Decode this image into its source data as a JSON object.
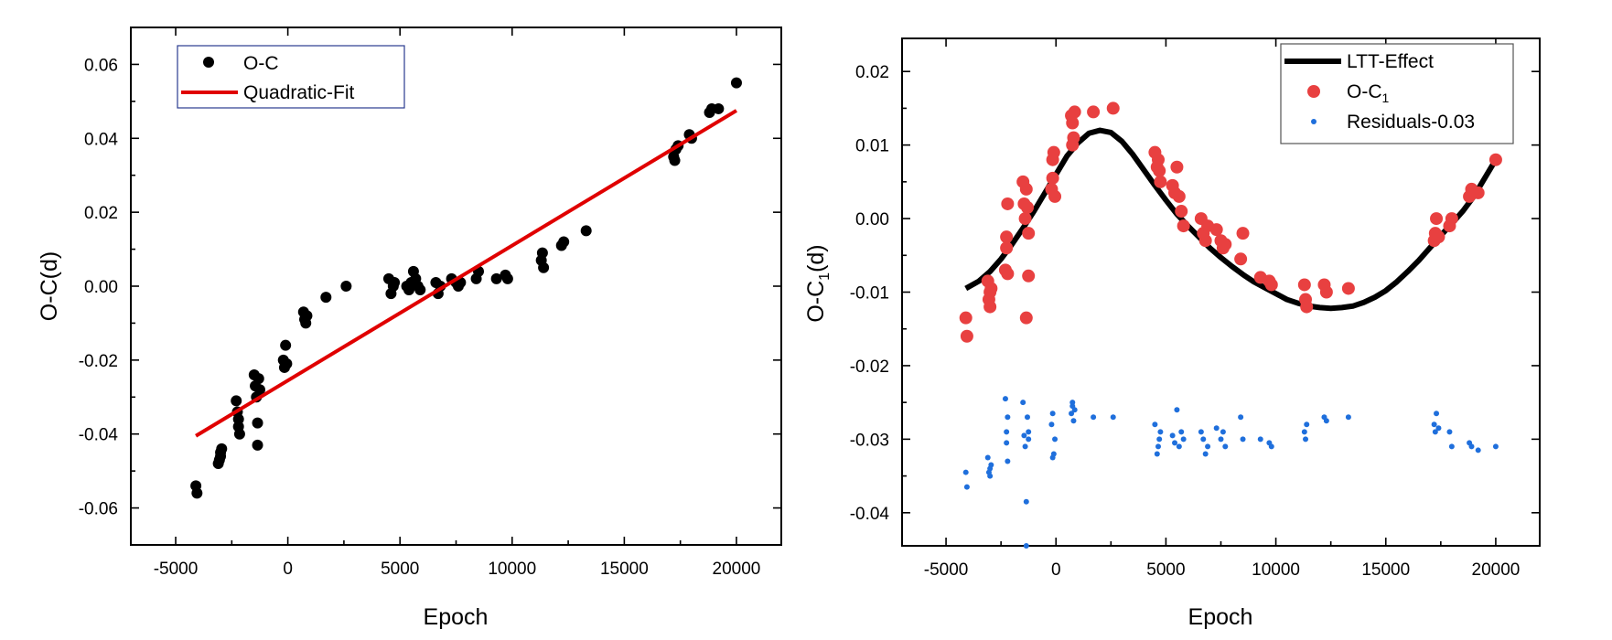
{
  "chart_data": [
    {
      "type": "scatter",
      "id": "left",
      "xlabel": "Epoch",
      "ylabel": "O-C(d)",
      "xlim": [
        -7000,
        22000
      ],
      "ylim": [
        -0.07,
        0.07
      ],
      "xticks": [
        -5000,
        0,
        5000,
        10000,
        15000,
        20000
      ],
      "xtick_labels": [
        "-5000",
        "0",
        "5000",
        "10000",
        "15000",
        "20000"
      ],
      "yticks": [
        -0.06,
        -0.04,
        -0.02,
        0.0,
        0.02,
        0.04,
        0.06
      ],
      "ytick_labels": [
        "-0.06",
        "-0.04",
        "-0.02",
        "0.00",
        "0.02",
        "0.04",
        "0.06"
      ],
      "legend": {
        "placement": "top-left",
        "entries": [
          {
            "label": "O-C",
            "style": "marker",
            "color": "#000000"
          },
          {
            "label": "Quadratic-Fit",
            "style": "line",
            "color": "#e00000"
          }
        ]
      },
      "series": [
        {
          "name": "O-C",
          "kind": "points",
          "color": "#000000",
          "x": [
            -4100,
            -4050,
            -3100,
            -3050,
            -3000,
            -3000,
            -2950,
            -2300,
            -2250,
            -2200,
            -2200,
            -2150,
            -1500,
            -1450,
            -1400,
            -1350,
            -1350,
            -1300,
            -1250,
            -200,
            -150,
            -100,
            -50,
            700,
            750,
            800,
            850,
            1700,
            2600,
            4500,
            4600,
            4700,
            4750,
            5300,
            5400,
            5500,
            5600,
            5700,
            5800,
            5900,
            6600,
            6700,
            6800,
            7300,
            7500,
            7600,
            7700,
            8400,
            8500,
            9300,
            9700,
            9800,
            11300,
            11350,
            11400,
            12200,
            12300,
            13300,
            17200,
            17250,
            17300,
            17400,
            17900,
            18000,
            18800,
            18900,
            19200,
            20000
          ],
          "y": [
            -0.054,
            -0.056,
            -0.048,
            -0.047,
            -0.045,
            -0.046,
            -0.044,
            -0.031,
            -0.034,
            -0.036,
            -0.038,
            -0.04,
            -0.024,
            -0.027,
            -0.03,
            -0.037,
            -0.043,
            -0.025,
            -0.028,
            -0.02,
            -0.022,
            -0.016,
            -0.021,
            -0.007,
            -0.009,
            -0.01,
            -0.008,
            -0.003,
            0.0,
            0.002,
            -0.002,
            0.0,
            0.001,
            0.0,
            -0.001,
            0.001,
            0.004,
            0.002,
            0.0,
            -0.001,
            0.001,
            -0.002,
            0.0,
            0.002,
            0.001,
            0.0,
            0.001,
            0.002,
            0.004,
            0.002,
            0.003,
            0.002,
            0.007,
            0.009,
            0.005,
            0.011,
            0.012,
            0.015,
            0.035,
            0.034,
            0.037,
            0.038,
            0.041,
            0.04,
            0.047,
            0.048,
            0.048,
            0.055
          ]
        },
        {
          "name": "Quadratic-Fit",
          "kind": "line",
          "color": "#e00000",
          "x": [
            -4100,
            20000
          ],
          "y": [
            -0.0405,
            0.0475
          ]
        }
      ]
    },
    {
      "type": "scatter",
      "id": "right",
      "xlabel": "Epoch",
      "ylabel_main": "O-C",
      "ylabel_sub": "1",
      "ylabel_tail": "(d)",
      "xlim": [
        -7000,
        22000
      ],
      "ylim": [
        -0.0445,
        0.0245
      ],
      "xticks": [
        -5000,
        0,
        5000,
        10000,
        15000,
        20000
      ],
      "xtick_labels": [
        "-5000",
        "0",
        "5000",
        "10000",
        "15000",
        "20000"
      ],
      "yticks": [
        -0.04,
        -0.03,
        -0.02,
        -0.01,
        0.0,
        0.01,
        0.02
      ],
      "ytick_labels": [
        "-0.04",
        "-0.03",
        "-0.02",
        "-0.01",
        "0.00",
        "0.01",
        "0.02"
      ],
      "legend": {
        "placement": "top-right",
        "entries": [
          {
            "label": "LTT-Effect",
            "style": "line",
            "color": "#000000"
          },
          {
            "label_main": "O-C",
            "label_sub": "1",
            "style": "marker",
            "color": "#e84040"
          },
          {
            "label": "Residuals-0.03",
            "style": "small-marker",
            "color": "#1f6fdc"
          }
        ]
      },
      "series": [
        {
          "name": "LTT-Effect",
          "kind": "line",
          "color": "#000000",
          "x": [
            -4100,
            -3500,
            -3000,
            -2500,
            -2000,
            -1500,
            -1000,
            -500,
            0,
            500,
            1000,
            1500,
            2000,
            2500,
            3000,
            3500,
            4000,
            4500,
            5000,
            5500,
            6000,
            6500,
            7000,
            7500,
            8000,
            8500,
            9000,
            9500,
            10000,
            10500,
            11000,
            11500,
            12000,
            12500,
            13000,
            13500,
            14000,
            14500,
            15000,
            15500,
            16000,
            16500,
            17000,
            17500,
            18000,
            18500,
            19000,
            19500,
            20000
          ],
          "y": [
            -0.0095,
            -0.0085,
            -0.0072,
            -0.0055,
            -0.0035,
            -0.0013,
            0.001,
            0.0035,
            0.006,
            0.0085,
            0.0103,
            0.0116,
            0.012,
            0.0117,
            0.0105,
            0.0087,
            0.0066,
            0.0045,
            0.0025,
            0.0006,
            -0.001,
            -0.0025,
            -0.004,
            -0.0053,
            -0.0065,
            -0.0076,
            -0.0086,
            -0.0094,
            -0.0102,
            -0.011,
            -0.0115,
            -0.0119,
            -0.0121,
            -0.0122,
            -0.0121,
            -0.0119,
            -0.0114,
            -0.0107,
            -0.0098,
            -0.0086,
            -0.0072,
            -0.0057,
            -0.004,
            -0.0023,
            -0.0007,
            0.001,
            0.003,
            0.0055,
            0.008
          ]
        },
        {
          "name": "O-C1",
          "kind": "points",
          "color": "#e84040",
          "x": [
            -4100,
            -4050,
            -3100,
            -3050,
            -3000,
            -2950,
            -3000,
            -2300,
            -2250,
            -2200,
            -2250,
            -2200,
            -1500,
            -1450,
            -1400,
            -1350,
            -1300,
            -1250,
            -1350,
            -1250,
            -200,
            -150,
            -100,
            -50,
            -150,
            700,
            750,
            800,
            850,
            750,
            1700,
            2600,
            4500,
            4600,
            4700,
            4750,
            4650,
            5300,
            5400,
            5500,
            5700,
            5600,
            5800,
            6600,
            6700,
            6800,
            6900,
            7300,
            7500,
            7600,
            7700,
            8400,
            8500,
            9300,
            9700,
            9800,
            11300,
            11350,
            11400,
            12200,
            12300,
            13300,
            17200,
            17250,
            17300,
            17400,
            17900,
            18000,
            18800,
            18900,
            19200,
            20000
          ],
          "y": [
            -0.0135,
            -0.016,
            -0.0085,
            -0.011,
            -0.012,
            -0.0095,
            -0.01,
            -0.007,
            -0.004,
            0.002,
            -0.0025,
            -0.0075,
            0.005,
            0.002,
            0.0,
            0.004,
            0.0015,
            -0.002,
            -0.0135,
            -0.0078,
            0.004,
            0.008,
            0.009,
            0.003,
            0.0055,
            0.014,
            0.013,
            0.011,
            0.0145,
            0.01,
            0.0145,
            0.015,
            0.009,
            0.007,
            0.0065,
            0.005,
            0.008,
            0.0045,
            0.0035,
            0.007,
            0.001,
            0.003,
            -0.001,
            0.0,
            -0.002,
            -0.003,
            -0.001,
            -0.0015,
            -0.003,
            -0.004,
            -0.0035,
            -0.0055,
            -0.002,
            -0.008,
            -0.0085,
            -0.009,
            -0.009,
            -0.011,
            -0.012,
            -0.009,
            -0.01,
            -0.0095,
            -0.003,
            -0.002,
            0.0,
            -0.0025,
            -0.001,
            0.0,
            0.003,
            0.004,
            0.0035,
            0.008
          ]
        },
        {
          "name": "Residuals-0.03",
          "kind": "points",
          "color": "#1f6fdc",
          "x": [
            -4100,
            -4050,
            -3100,
            -3050,
            -3000,
            -2950,
            -3000,
            -2300,
            -2250,
            -2200,
            -2250,
            -2200,
            -1500,
            -1450,
            -1400,
            -1350,
            -1300,
            -1250,
            -1350,
            -1250,
            -200,
            -150,
            -100,
            -50,
            -150,
            700,
            750,
            800,
            850,
            750,
            1700,
            2600,
            4500,
            4600,
            4700,
            4750,
            4650,
            5300,
            5400,
            5500,
            5700,
            5600,
            5800,
            6600,
            6700,
            6800,
            6900,
            7300,
            7500,
            7600,
            7700,
            8400,
            8500,
            9300,
            9700,
            9800,
            11300,
            11350,
            11400,
            12200,
            12300,
            13300,
            17200,
            17250,
            17300,
            17400,
            17900,
            18000,
            18800,
            18900,
            19200,
            20000
          ],
          "y": [
            -0.0345,
            -0.0365,
            -0.0325,
            -0.0345,
            -0.035,
            -0.0335,
            -0.034,
            -0.0245,
            -0.0305,
            -0.027,
            -0.029,
            -0.033,
            -0.025,
            -0.0295,
            -0.031,
            -0.0385,
            -0.027,
            -0.03,
            -0.0445,
            -0.029,
            -0.028,
            -0.0325,
            -0.032,
            -0.03,
            -0.0265,
            -0.0265,
            -0.0255,
            -0.0275,
            -0.026,
            -0.025,
            -0.027,
            -0.027,
            -0.028,
            -0.032,
            -0.03,
            -0.029,
            -0.031,
            -0.0295,
            -0.0305,
            -0.026,
            -0.029,
            -0.031,
            -0.03,
            -0.029,
            -0.03,
            -0.032,
            -0.031,
            -0.0285,
            -0.03,
            -0.029,
            -0.031,
            -0.027,
            -0.03,
            -0.03,
            -0.0305,
            -0.031,
            -0.029,
            -0.03,
            -0.028,
            -0.027,
            -0.0275,
            -0.027,
            -0.028,
            -0.029,
            -0.0265,
            -0.0285,
            -0.029,
            -0.031,
            -0.0305,
            -0.031,
            -0.0315,
            -0.031
          ]
        }
      ]
    }
  ]
}
